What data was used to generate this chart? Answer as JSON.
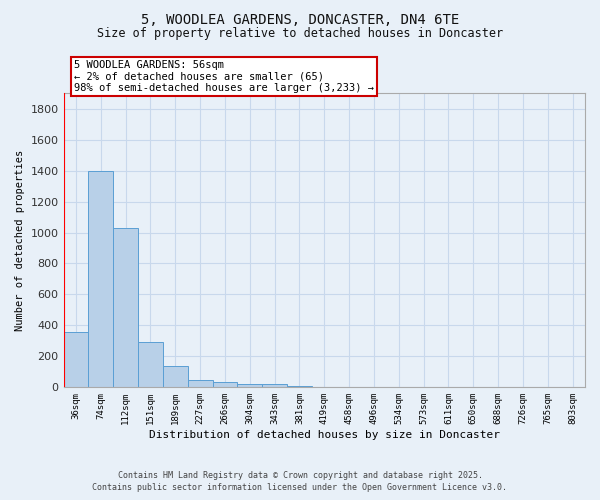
{
  "title": "5, WOODLEA GARDENS, DONCASTER, DN4 6TE",
  "subtitle": "Size of property relative to detached houses in Doncaster",
  "xlabel": "Distribution of detached houses by size in Doncaster",
  "ylabel": "Number of detached properties",
  "categories": [
    "36sqm",
    "74sqm",
    "112sqm",
    "151sqm",
    "189sqm",
    "227sqm",
    "266sqm",
    "304sqm",
    "343sqm",
    "381sqm",
    "419sqm",
    "458sqm",
    "496sqm",
    "534sqm",
    "573sqm",
    "611sqm",
    "650sqm",
    "688sqm",
    "726sqm",
    "765sqm",
    "803sqm"
  ],
  "values": [
    360,
    1400,
    1030,
    290,
    135,
    45,
    35,
    20,
    20,
    10,
    5,
    3,
    2,
    2,
    2,
    1,
    1,
    1,
    1,
    1,
    1
  ],
  "bar_color": "#b8d0e8",
  "bar_edge_color": "#5a9fd4",
  "background_color": "#e8f0f8",
  "grid_color": "#c8d8ec",
  "annotation_line1": "5 WOODLEA GARDENS: 56sqm",
  "annotation_line2": "← 2% of detached houses are smaller (65)",
  "annotation_line3": "98% of semi-detached houses are larger (3,233) →",
  "annotation_box_color": "#ffffff",
  "annotation_box_edge": "#cc0000",
  "footer_line1": "Contains HM Land Registry data © Crown copyright and database right 2025.",
  "footer_line2": "Contains public sector information licensed under the Open Government Licence v3.0.",
  "ylim": [
    0,
    1900
  ],
  "yticks": [
    0,
    200,
    400,
    600,
    800,
    1000,
    1200,
    1400,
    1600,
    1800
  ],
  "red_line_bar_index": 0
}
